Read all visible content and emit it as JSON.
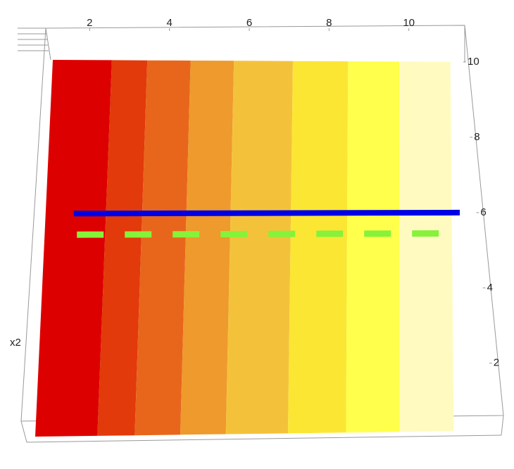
{
  "chart_data": {
    "type": "bands3d",
    "y_axis_label": "x2",
    "xlim": [
      0.9,
      11.4
    ],
    "xticks": [
      2,
      4,
      6,
      8,
      10
    ],
    "ylim": [
      0.2,
      10
    ],
    "yticks": [
      2,
      4,
      6,
      8,
      10
    ],
    "band_edges": [
      0.9,
      2.4,
      3.3,
      4.4,
      5.5,
      7.0,
      8.4,
      9.7,
      11.0
    ],
    "band_colors": [
      "#dd0000",
      "#e23a0a",
      "#e8661c",
      "#ee9a2c",
      "#f4c23a",
      "#fbe634",
      "#ffff4c",
      "#fffbc0"
    ],
    "lines": [
      {
        "color": "#0000e6",
        "dashed": false,
        "x": [
          1.6,
          11.2
        ],
        "values": [
          6,
          6
        ]
      },
      {
        "color": "#86f23a",
        "dashed": true,
        "x": [
          1.7,
          11.0
        ],
        "values": [
          5.45,
          5.45
        ]
      }
    ]
  }
}
